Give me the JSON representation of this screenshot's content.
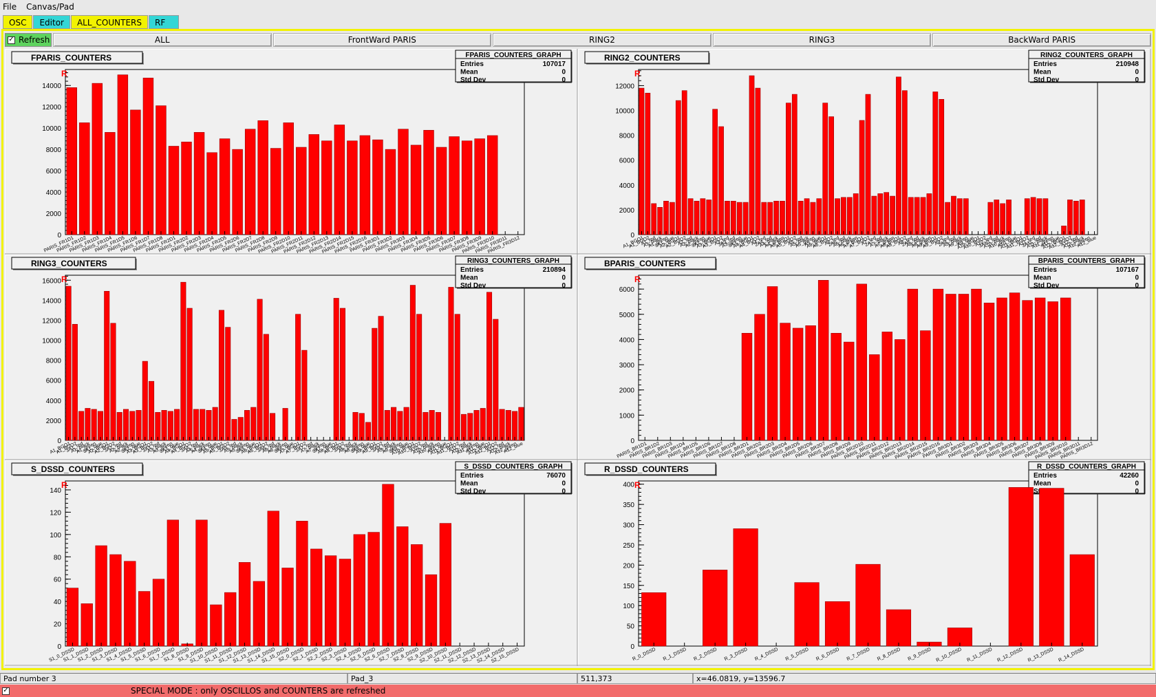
{
  "menu": {
    "file": "File",
    "canvas": "Canvas/Pad"
  },
  "tabs": [
    {
      "label": "OSC",
      "color": "#f2f200"
    },
    {
      "label": "Editor",
      "color": "#33d6d6"
    },
    {
      "label": "ALL_COUNTERS",
      "color": "#f2f200"
    },
    {
      "label": "RF",
      "color": "#33d6d6"
    }
  ],
  "toolbar": {
    "refresh_label": "Refresh",
    "refresh_checked": "✓",
    "buttons": [
      "ALL",
      "FrontWard PARIS",
      "RING2",
      "RING3",
      "BackWard PARIS"
    ]
  },
  "status": {
    "pad": "Pad number 3",
    "padname": "Pad_3",
    "pixel": "511,373",
    "coords": "x=46.0819, y=13596.7"
  },
  "special": {
    "checked": "✓",
    "message": "SPECIAL MODE : only OSCILLOS and COUNTERS are refreshed"
  },
  "colors": {
    "bar": "#ff0000",
    "bar_edge": "#990000",
    "frame_bg": "#f0f0f0",
    "accent_yellow": "#f2f200",
    "accent_cyan": "#33d6d6",
    "refresh_green": "#5ed35e",
    "special_red": "#f26b6b"
  },
  "chart_data": [
    {
      "type": "bar",
      "title": "FPARIS_COUNTERS",
      "stats": {
        "name": "FPARIS_COUNTERS_GRAPH",
        "entries": "107017",
        "mean": "0",
        "std": "0"
      },
      "ylim": [
        0,
        15500
      ],
      "yticks": [
        0,
        2000,
        4000,
        6000,
        8000,
        10000,
        12000,
        14000
      ],
      "labels": [
        "PARIS_FR1D1",
        "PARIS_FR1D2",
        "PARIS_FR1D3",
        "PARIS_FR1D4",
        "PARIS_FR1D5",
        "PARIS_FR1D6",
        "PARIS_FR1D7",
        "PARIS_FR1D8",
        "PARIS_FR2D1",
        "PARIS_FR2D2",
        "PARIS_FR2D3",
        "PARIS_FR2D4",
        "PARIS_FR2D5",
        "PARIS_FR2D6",
        "PARIS_FR2D7",
        "PARIS_FR2D8",
        "PARIS_FR2D9",
        "PARIS_FR2D10",
        "PARIS_FR2D11",
        "PARIS_FR2D12",
        "PARIS_FR2D13",
        "PARIS_FR2D14",
        "PARIS_FR2D15",
        "PARIS_FR2D16",
        "PARIS_FR3D1",
        "PARIS_FR3D2",
        "PARIS_FR3D3",
        "PARIS_FR3D4",
        "PARIS_FR3D5",
        "PARIS_FR3D6",
        "PARIS_FR3D7",
        "PARIS_FR3D8",
        "PARIS_FR3D9",
        "PARIS_FR3D10",
        "PARIS_FR3D11",
        "PARIS_FR3D12"
      ],
      "values": [
        13800,
        10500,
        14200,
        9600,
        15000,
        11700,
        14700,
        12100,
        8300,
        8700,
        9600,
        7700,
        9000,
        8000,
        9900,
        10700,
        8100,
        10500,
        8200,
        9400,
        8800,
        10300,
        8800,
        9300,
        8900,
        8000,
        9900,
        8400,
        9800,
        8200,
        9200,
        8800,
        9000,
        9300,
        0,
        0
      ]
    },
    {
      "type": "bar",
      "title": "RING2_COUNTERS",
      "stats": {
        "name": "RING2_COUNTERS_GRAPH",
        "entries": "210948",
        "mean": "0",
        "std": "0"
      },
      "ylim": [
        0,
        13300
      ],
      "yticks": [
        0,
        2000,
        4000,
        6000,
        8000,
        10000,
        12000
      ],
      "labels": [
        "A1_BGO1",
        "A1_BGO2",
        "A1_red",
        "A1_black",
        "A1_green",
        "3A1_blue",
        "A2_BGO1",
        "A2_BGO2",
        "A2_red",
        "A2_black",
        "A2_green",
        "3A2_blue",
        "A3_BGO1",
        "A3_BGO2",
        "A3_red",
        "3A3_red",
        "A3_green",
        "3A3_blue",
        "A4_BGO1",
        "A4_BGO2",
        "A4_red",
        "2A4_red",
        "A4_black",
        "A4_green",
        "A5_BGO1",
        "A5_BGO2",
        "A5_red",
        "A5_black",
        "A5_green",
        "A5_blue",
        "A6_BGO1",
        "A6_BGO2",
        "A6_red",
        "2A6_red",
        "A6_black",
        "A6_green",
        "A7_BGO1",
        "A7_BGO2",
        "A7_red",
        "2A7_red",
        "A7_black",
        "A7_green",
        "A8_BGO1",
        "A8_BGO2",
        "A8_red",
        "2A8_red",
        "A8_black",
        "A8_green",
        "A9_BGO1",
        "A9_BGO2",
        "A9_red",
        "2A9_red",
        "A9_black",
        "A9_green",
        "A9_blue",
        "A10_BGO1",
        "A10_BGO2",
        "A10_red",
        "3A10_red",
        "A10_black",
        "A10_green",
        "A10_blue",
        "A11_BGO1",
        "A11_BGO2",
        "A11_red",
        "3A11_red",
        "A11_black",
        "A11_green",
        "A11_blue",
        "A12_BGO1",
        "A12_BGO2",
        "A12_red",
        "A12_black",
        "A12_green",
        "A12_blue"
      ],
      "values": [
        11800,
        11400,
        2500,
        2200,
        2700,
        2600,
        10800,
        11600,
        2900,
        2700,
        2900,
        2800,
        10100,
        8700,
        2700,
        2700,
        2600,
        2600,
        12800,
        11800,
        2600,
        2600,
        2700,
        2700,
        10600,
        11300,
        2700,
        2900,
        2600,
        2900,
        10600,
        9500,
        2900,
        3000,
        3000,
        3300,
        9200,
        11300,
        3100,
        3300,
        3400,
        3100,
        12700,
        11600,
        3000,
        3000,
        3000,
        3300,
        11500,
        10900,
        2600,
        3100,
        2900,
        2900,
        0,
        0,
        0,
        2600,
        2800,
        2500,
        2800,
        0,
        0,
        2900,
        3000,
        2900,
        2900,
        0,
        0,
        700,
        2800,
        2700,
        2800,
        0,
        0
      ]
    },
    {
      "type": "bar",
      "title": "RING3_COUNTERS",
      "stats": {
        "name": "RING3_COUNTERS_GRAPH",
        "entries": "210894",
        "mean": "0",
        "std": "0"
      },
      "ylim": [
        0,
        16500
      ],
      "yticks": [
        0,
        2000,
        4000,
        6000,
        8000,
        10000,
        12000,
        14000,
        16000
      ],
      "labels": [
        "A1_BGO1",
        "A1_BGO2",
        "3A1_red",
        "A1_black",
        "A1_green",
        "3A1_blue",
        "A2_BGO1",
        "A2_BGO2",
        "3A2_red",
        "A2_black",
        "A2_green",
        "3A2_blue",
        "A3_BGO1",
        "A3_BGO2",
        "3A3_red",
        "A3_black",
        "A3_green",
        "3A3_blue",
        "A4_BGO1",
        "A4_BGO2",
        "3A4_red",
        "A4_black",
        "A4_green",
        "3A4_blue",
        "A5_BGO1",
        "A5_BGO2",
        "3A5_red",
        "A5_black",
        "A5_green",
        "3A5_blue",
        "A6_BGO1",
        "A6_BGO2",
        "3A6_red",
        "A6_black",
        "A6_green",
        "3A6_blue",
        "A7_BGO1",
        "A7_BGO2",
        "3A7_red",
        "A7_black",
        "A7_green",
        "3A7_blue",
        "A8_BGO1",
        "A8_BGO2",
        "3A8_red",
        "A8_black",
        "A8_green",
        "3A8_blue",
        "A9_BGO1",
        "A9_BGO2",
        "3A9_red",
        "A9_black",
        "A9_green",
        "3A9_blue",
        "A10_BGO1",
        "A10_BGO2",
        "A10_red",
        "A10_black",
        "A10_green",
        "A10_blue",
        "A11_BGO1",
        "A11_BGO2",
        "A11_red",
        "A11_black",
        "A11_green",
        "A11_blue",
        "A12_BGO1",
        "A12_BGO2",
        "A12_red",
        "A12_black",
        "A12_green",
        "A12_blue"
      ],
      "values": [
        15400,
        11600,
        2900,
        3200,
        3100,
        2900,
        14900,
        11700,
        2800,
        3100,
        2900,
        3000,
        7900,
        5900,
        2800,
        3000,
        2900,
        3100,
        15800,
        13200,
        3100,
        3100,
        3000,
        3300,
        13000,
        11300,
        2100,
        2300,
        3000,
        3300,
        14100,
        10600,
        2700,
        0,
        3200,
        0,
        12600,
        9000,
        0,
        0,
        0,
        0,
        14200,
        13200,
        0,
        2800,
        2700,
        1800,
        11200,
        12400,
        3000,
        3300,
        2900,
        3300,
        15500,
        12600,
        2800,
        3000,
        2800,
        0,
        15300,
        12600,
        2600,
        2700,
        3000,
        3200,
        14800,
        12100,
        3100,
        3000,
        2900,
        3300
      ]
    },
    {
      "type": "bar",
      "title": "BPARIS_COUNTERS",
      "stats": {
        "name": "BPARIS_COUNTERS_GRAPH",
        "entries": "107167",
        "mean": "0",
        "std": "0"
      },
      "ylim": [
        0,
        6550
      ],
      "yticks": [
        0,
        1000,
        2000,
        3000,
        4000,
        5000,
        6000
      ],
      "labels": [
        "PARIS_BR1D1",
        "PARIS_BR1D2",
        "PARIS_BR1D3",
        "PARIS_BR1D4",
        "PARIS_BR1D5",
        "PARIS_BR1D6",
        "PARIS_BR1D7",
        "PARIS_BR1D8",
        "PARIS_BR2D1",
        "PARIS_BR2D2",
        "PARIS_BR2D3",
        "PARIS_BR2D4",
        "PARIS_BR2D5",
        "PARIS_BR2D6",
        "PARIS_BR2D7",
        "PARIS_BR2D8",
        "PARIS_BR2D9",
        "PARIS_BR2D10",
        "PARIS_BR2D11",
        "PARIS_BR2D12",
        "PARIS_BR2D13",
        "PARIS_BR2D14",
        "PARIS_BR2D15",
        "PARIS_BR2D16",
        "PARIS_BR3D1",
        "PARIS_BR3D2",
        "PARIS_BR3D3",
        "PARIS_BR3D4",
        "PARIS_BR3D5",
        "PARIS_BR3D6",
        "PARIS_BR3D7",
        "PARIS_BR3D8",
        "PARIS_BR3D9",
        "PARIS_BR3D10",
        "PARIS_BR3D11",
        "PARIS_BR3D12"
      ],
      "values": [
        0,
        0,
        0,
        0,
        0,
        0,
        0,
        0,
        4250,
        5000,
        6100,
        4650,
        4450,
        4550,
        6350,
        4250,
        3900,
        6200,
        3400,
        4300,
        4000,
        6000,
        4350,
        6000,
        5800,
        5800,
        6000,
        5450,
        5650,
        5850,
        5550,
        5650,
        5500,
        5650,
        0,
        0
      ]
    },
    {
      "type": "bar",
      "title": "S_DSSD_COUNTERS",
      "stats": {
        "name": "S_DSSD_COUNTERS_GRAPH",
        "entries": "76070",
        "mean": "0",
        "std": "0"
      },
      "ylim": [
        0,
        148
      ],
      "yticks": [
        0,
        20,
        40,
        60,
        80,
        100,
        120,
        140
      ],
      "labels": [
        "S1_0_DSSD",
        "S1_1_DSSD",
        "S1_2_DSSD",
        "S1_3_DSSD",
        "S1_4_DSSD",
        "S1_5_DSSD",
        "S1_6_DSSD",
        "S1_7_DSSD",
        "S1_8_DSSD",
        "S1_9_DSSD",
        "S1_10_DSSD",
        "S1_11_DSSD",
        "S1_12_DSSD",
        "S1_13_DSSD",
        "S1_14_DSSD",
        "S1_15_DSSD",
        "S2_0_DSSD",
        "S2_1_DSSD",
        "S2_2_DSSD",
        "S2_3_DSSD",
        "S2_4_DSSD",
        "S2_5_DSSD",
        "S2_6_DSSD",
        "S2_7_DSSD",
        "S2_8_DSSD",
        "S2_9_DSSD",
        "S2_10_DSSD",
        "S2_11_DSSD",
        "S2_12_DSSD",
        "S2_13_DSSD",
        "S2_14_DSSD",
        "S2_15_DSSD"
      ],
      "values": [
        52,
        38,
        90,
        82,
        76,
        49,
        60,
        113,
        2,
        113,
        37,
        48,
        75,
        58,
        121,
        70,
        112,
        87,
        81,
        78,
        100,
        102,
        145,
        107,
        91,
        64,
        110,
        0,
        0,
        0,
        0,
        0
      ]
    },
    {
      "type": "bar",
      "title": "R_DSSD_COUNTERS",
      "stats": {
        "name": "R_DSSD_COUNTERS_GRAPH",
        "entries": "42260",
        "mean": "0",
        "std": "0"
      },
      "ylim": [
        0,
        408
      ],
      "yticks": [
        0,
        50,
        100,
        150,
        200,
        250,
        300,
        350,
        400
      ],
      "labels": [
        "R_0_DSSD",
        "R_1_DSSD",
        "R_2_DSSD",
        "R_3_DSSD",
        "R_4_DSSD",
        "R_5_DSSD",
        "R_6_DSSD",
        "R_7_DSSD",
        "R_8_DSSD",
        "R_9_DSSD",
        "R_10_DSSD",
        "R_11_DSSD",
        "R_12_DSSD",
        "R_13_DSSD",
        "R_14_DSSD"
      ],
      "values": [
        132,
        0,
        188,
        290,
        0,
        157,
        110,
        202,
        90,
        10,
        45,
        0,
        392,
        390,
        226
      ]
    }
  ]
}
